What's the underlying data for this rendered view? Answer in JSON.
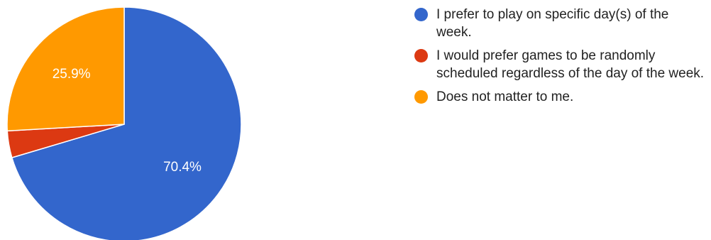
{
  "chart_data": {
    "type": "pie",
    "title": "",
    "slices": [
      {
        "label": "I prefer to play on specific day(s) of the week.",
        "value": 70.4,
        "display": "70.4%",
        "color": "#3366cc"
      },
      {
        "label": "I would prefer games to be randomly scheduled regardless of the day of the week.",
        "value": 3.7,
        "display": "",
        "color": "#dc3912"
      },
      {
        "label": "Does not matter to me.",
        "value": 25.9,
        "display": "25.9%",
        "color": "#ff9900"
      }
    ],
    "legend_position": "right",
    "start_angle_deg": 90,
    "direction": "clockwise"
  }
}
